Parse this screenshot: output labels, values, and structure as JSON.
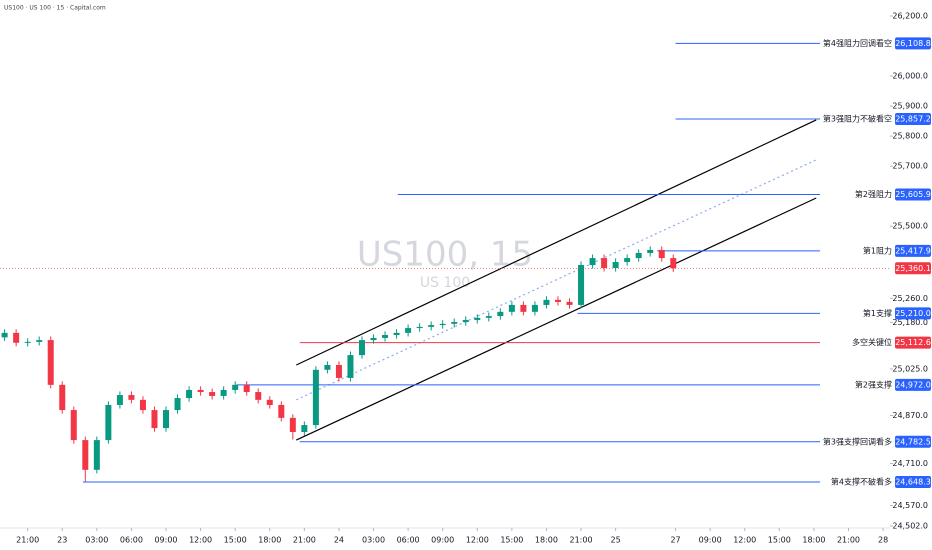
{
  "chart_data": {
    "type": "candlestick",
    "title": "US100 · US 100 · 15 · Capital.com",
    "watermark": "US100, 15",
    "watermark_sub": "US 100",
    "xlim": [
      -2.4,
      74.8
    ],
    "xticks": [
      {
        "value": 0,
        "label": "21:00"
      },
      {
        "value": 3,
        "label": "23"
      },
      {
        "value": 6,
        "label": "03:00"
      },
      {
        "value": 9,
        "label": "06:00"
      },
      {
        "value": 12,
        "label": "09:00"
      },
      {
        "value": 15,
        "label": "12:00"
      },
      {
        "value": 18,
        "label": "15:00"
      },
      {
        "value": 21,
        "label": "18:00"
      },
      {
        "value": 24,
        "label": "21:00"
      },
      {
        "value": 27,
        "label": "24"
      },
      {
        "value": 30,
        "label": "03:00"
      },
      {
        "value": 33,
        "label": "06:00"
      },
      {
        "value": 36,
        "label": "09:00"
      },
      {
        "value": 39,
        "label": "12:00"
      },
      {
        "value": 42,
        "label": "15:00"
      },
      {
        "value": 45,
        "label": "18:00"
      },
      {
        "value": 48,
        "label": "21:00"
      },
      {
        "value": 51,
        "label": "25"
      },
      {
        "value": 56.2,
        "label": "27"
      },
      {
        "value": 59.2,
        "label": "09:00"
      },
      {
        "value": 62.2,
        "label": "12:00"
      },
      {
        "value": 65.2,
        "label": "15:00"
      },
      {
        "value": 68.2,
        "label": "18:00"
      },
      {
        "value": 71.2,
        "label": "21:00"
      },
      {
        "value": 74.2,
        "label": "28"
      }
    ],
    "ylim": [
      24502,
      26200
    ],
    "yticks": [
      {
        "value": 26200,
        "label": "26,200.0"
      },
      {
        "value": 26000,
        "label": "26,000.0"
      },
      {
        "value": 25900,
        "label": "25,900.0"
      },
      {
        "value": 25800,
        "label": "25,800.0"
      },
      {
        "value": 25700,
        "label": "25,700.0"
      },
      {
        "value": 25500,
        "label": "25,500.0"
      },
      {
        "value": 25260,
        "label": "25,260.0"
      },
      {
        "value": 25180,
        "label": "25,180.0"
      },
      {
        "value": 25025,
        "label": "25,025.0"
      },
      {
        "value": 24870,
        "label": "24,870.0"
      },
      {
        "value": 24710,
        "label": "24,710.0"
      },
      {
        "value": 24570,
        "label": "24,570.0"
      },
      {
        "value": 24502,
        "label": "24,502.0"
      }
    ],
    "up_color": "#089981",
    "down_color": "#f23645",
    "x": [
      -2,
      -1,
      0,
      1,
      2,
      3,
      4,
      5,
      6,
      7,
      8,
      9,
      10,
      11,
      12,
      13,
      14,
      15,
      16,
      17,
      18,
      19,
      20,
      21,
      22,
      23,
      24,
      25,
      26,
      27,
      28,
      29,
      30,
      31,
      32,
      33,
      34,
      35,
      36,
      37,
      38,
      39,
      40,
      41,
      42,
      43,
      44,
      45,
      46,
      47,
      48,
      49,
      50,
      51,
      52,
      53,
      54,
      55,
      56
    ],
    "open": [
      25130,
      25145,
      25112,
      25115,
      25121,
      24972,
      24888,
      24788,
      24689,
      24788,
      24905,
      24938,
      24922,
      24888,
      24828,
      24888,
      24928,
      24955,
      24948,
      24935,
      24955,
      24972,
      24948,
      24922,
      24905,
      24862,
      24815,
      24838,
      25022,
      25038,
      24995,
      25071,
      25121,
      25128,
      25138,
      25145,
      25161,
      25165,
      25171,
      25175,
      25181,
      25188,
      25195,
      25201,
      25215,
      25238,
      25215,
      25238,
      25255,
      25248,
      25238,
      25371,
      25394,
      25361,
      25381,
      25394,
      25411,
      25421,
      25394
    ],
    "high": [
      25157,
      25157,
      25127,
      25133,
      25133,
      24984,
      24900,
      24800,
      24800,
      24917,
      24950,
      24950,
      24934,
      24900,
      24900,
      24940,
      24967,
      24967,
      24960,
      24967,
      24984,
      24984,
      24960,
      24934,
      24917,
      24874,
      24850,
      25034,
      25050,
      25050,
      25083,
      25133,
      25140,
      25150,
      25157,
      25173,
      25177,
      25183,
      25187,
      25193,
      25200,
      25207,
      25213,
      25227,
      25250,
      25250,
      25250,
      25267,
      25267,
      25260,
      25383,
      25406,
      25406,
      25393,
      25406,
      25423,
      25433,
      25433,
      25406
    ],
    "low": [
      25118,
      25100,
      25100,
      25103,
      24960,
      24876,
      24776,
      24650,
      24677,
      24776,
      24893,
      24910,
      24876,
      24816,
      24816,
      24876,
      24916,
      24936,
      24923,
      24923,
      24943,
      24936,
      24910,
      24893,
      24850,
      24790,
      24803,
      24826,
      25010,
      24983,
      24983,
      25059,
      25109,
      25116,
      25126,
      25133,
      25149,
      25153,
      25159,
      25163,
      25169,
      25176,
      25183,
      25189,
      25203,
      25203,
      25203,
      25226,
      25236,
      25226,
      25226,
      25359,
      25349,
      25349,
      25369,
      25382,
      25399,
      25382,
      25348
    ],
    "close": [
      25145,
      25112,
      25115,
      25121,
      24972,
      24888,
      24788,
      24689,
      24788,
      24905,
      24938,
      24922,
      24888,
      24828,
      24888,
      24928,
      24955,
      24948,
      24935,
      24955,
      24972,
      24948,
      24922,
      24905,
      24862,
      24815,
      24838,
      25022,
      25038,
      24995,
      25071,
      25121,
      25128,
      25138,
      25145,
      25161,
      25165,
      25171,
      25175,
      25181,
      25188,
      25195,
      25201,
      25215,
      25238,
      25215,
      25238,
      25255,
      25248,
      25238,
      25371,
      25394,
      25361,
      25381,
      25394,
      25411,
      25421,
      25394,
      25360
    ],
    "levels": [
      {
        "name": "第4强阻力回调看空",
        "value": 26108.8,
        "label": "26,108.8",
        "start": 56.2,
        "color": "#2962ff"
      },
      {
        "name": "第3强阻力不破看空",
        "value": 25857.2,
        "label": "25,857.2",
        "start": 56.2,
        "color": "#2962ff"
      },
      {
        "name": "第2强阻力",
        "value": 25605.9,
        "label": "25,605.9",
        "start": 32.1,
        "color": "#2962ff"
      },
      {
        "name": "第1阻力",
        "value": 25417.9,
        "label": "25,417.9",
        "start": 54.6,
        "color": "#2962ff"
      },
      {
        "name": "第1支撑",
        "value": 25210.0,
        "label": "25,210.0",
        "start": 47.7,
        "color": "#2962ff"
      },
      {
        "name": "多空关键位",
        "value": 25112.6,
        "label": "25,112.6",
        "start": 23.6,
        "color": "#f23645"
      },
      {
        "name": "第2强支撑",
        "value": 24972.0,
        "label": "24,972.0",
        "start": 18.1,
        "color": "#2962ff"
      },
      {
        "name": "第3强支撑回调看多",
        "value": 24782.5,
        "label": "24,782.5",
        "start": 23.6,
        "color": "#2962ff"
      },
      {
        "name": "第4支撑不破看多",
        "value": 24648.3,
        "label": "24,648.3",
        "start": 4.8,
        "color": "#2962ff"
      }
    ],
    "last_price": {
      "value": 25360.1,
      "label": "25,360.1",
      "color": "#f23645"
    },
    "trend_lines": [
      {
        "x": [
          23.3,
          68.4
        ],
        "y": [
          25038,
          25854
        ],
        "color": "#000000",
        "dashed": false
      },
      {
        "x": [
          23.3,
          68.4
        ],
        "y": [
          24788,
          25594
        ],
        "color": "#000000",
        "dashed": false
      },
      {
        "x": [
          23.3,
          68.4
        ],
        "y": [
          24922,
          25721
        ],
        "color": "#8fa8f0",
        "dashed": true
      }
    ]
  }
}
